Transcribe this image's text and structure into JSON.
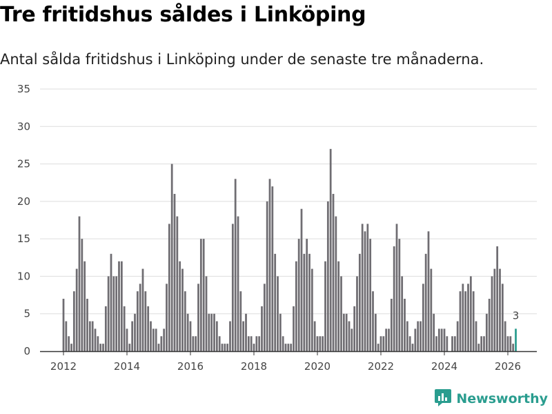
{
  "header": {
    "title": "Tre fritidshus såldes i Linköping",
    "subtitle": "Antal sålda fritidshus i Linköping under de senaste tre månaderna."
  },
  "brand": {
    "name": "Newsworthy",
    "icon": "newsworthy-logo-icon"
  },
  "colors": {
    "bar": "#6f6d72",
    "highlight": "#2a9d8f",
    "grid": "#dddddd",
    "axis": "#333333"
  },
  "chart_data": {
    "type": "bar",
    "title": "Tre fritidshus såldes i Linköping",
    "subtitle": "Antal sålda fritidshus i Linköping under de senaste tre månaderna.",
    "xlabel": "",
    "ylabel": "",
    "ylim": [
      0,
      35
    ],
    "yticks": [
      0,
      5,
      10,
      15,
      20,
      25,
      30,
      35
    ],
    "xticks": [
      2012,
      2014,
      2016,
      2018,
      2020,
      2022,
      2024,
      2026
    ],
    "x_start": 2012.0,
    "x_end": 2026.5,
    "period_months": 1,
    "values": [
      7,
      4,
      2,
      1,
      8,
      11,
      18,
      15,
      12,
      7,
      4,
      4,
      3,
      2,
      1,
      1,
      6,
      10,
      13,
      10,
      10,
      12,
      12,
      6,
      3,
      1,
      4,
      5,
      8,
      9,
      11,
      8,
      6,
      4,
      3,
      3,
      1,
      2,
      3,
      9,
      17,
      25,
      21,
      18,
      12,
      11,
      8,
      5,
      4,
      2,
      2,
      9,
      15,
      15,
      10,
      5,
      5,
      5,
      4,
      2,
      1,
      1,
      1,
      4,
      17,
      23,
      18,
      8,
      4,
      5,
      2,
      2,
      1,
      2,
      2,
      6,
      9,
      20,
      23,
      22,
      13,
      10,
      5,
      2,
      1,
      1,
      1,
      6,
      12,
      15,
      19,
      13,
      15,
      13,
      11,
      4,
      2,
      2,
      2,
      12,
      20,
      27,
      21,
      18,
      12,
      10,
      5,
      5,
      4,
      3,
      6,
      10,
      13,
      17,
      16,
      17,
      15,
      8,
      5,
      1,
      2,
      2,
      3,
      3,
      7,
      14,
      17,
      15,
      10,
      7,
      4,
      2,
      1,
      3,
      4,
      4,
      9,
      13,
      16,
      11,
      5,
      2,
      3,
      3,
      3,
      2,
      0,
      2,
      2,
      4,
      8,
      9,
      8,
      9,
      10,
      8,
      4,
      1,
      2,
      2,
      5,
      7,
      10,
      11,
      14,
      11,
      9,
      4,
      2,
      2,
      1,
      3
    ],
    "highlight_last": true,
    "annotation": {
      "label": "3",
      "value": 3
    }
  }
}
